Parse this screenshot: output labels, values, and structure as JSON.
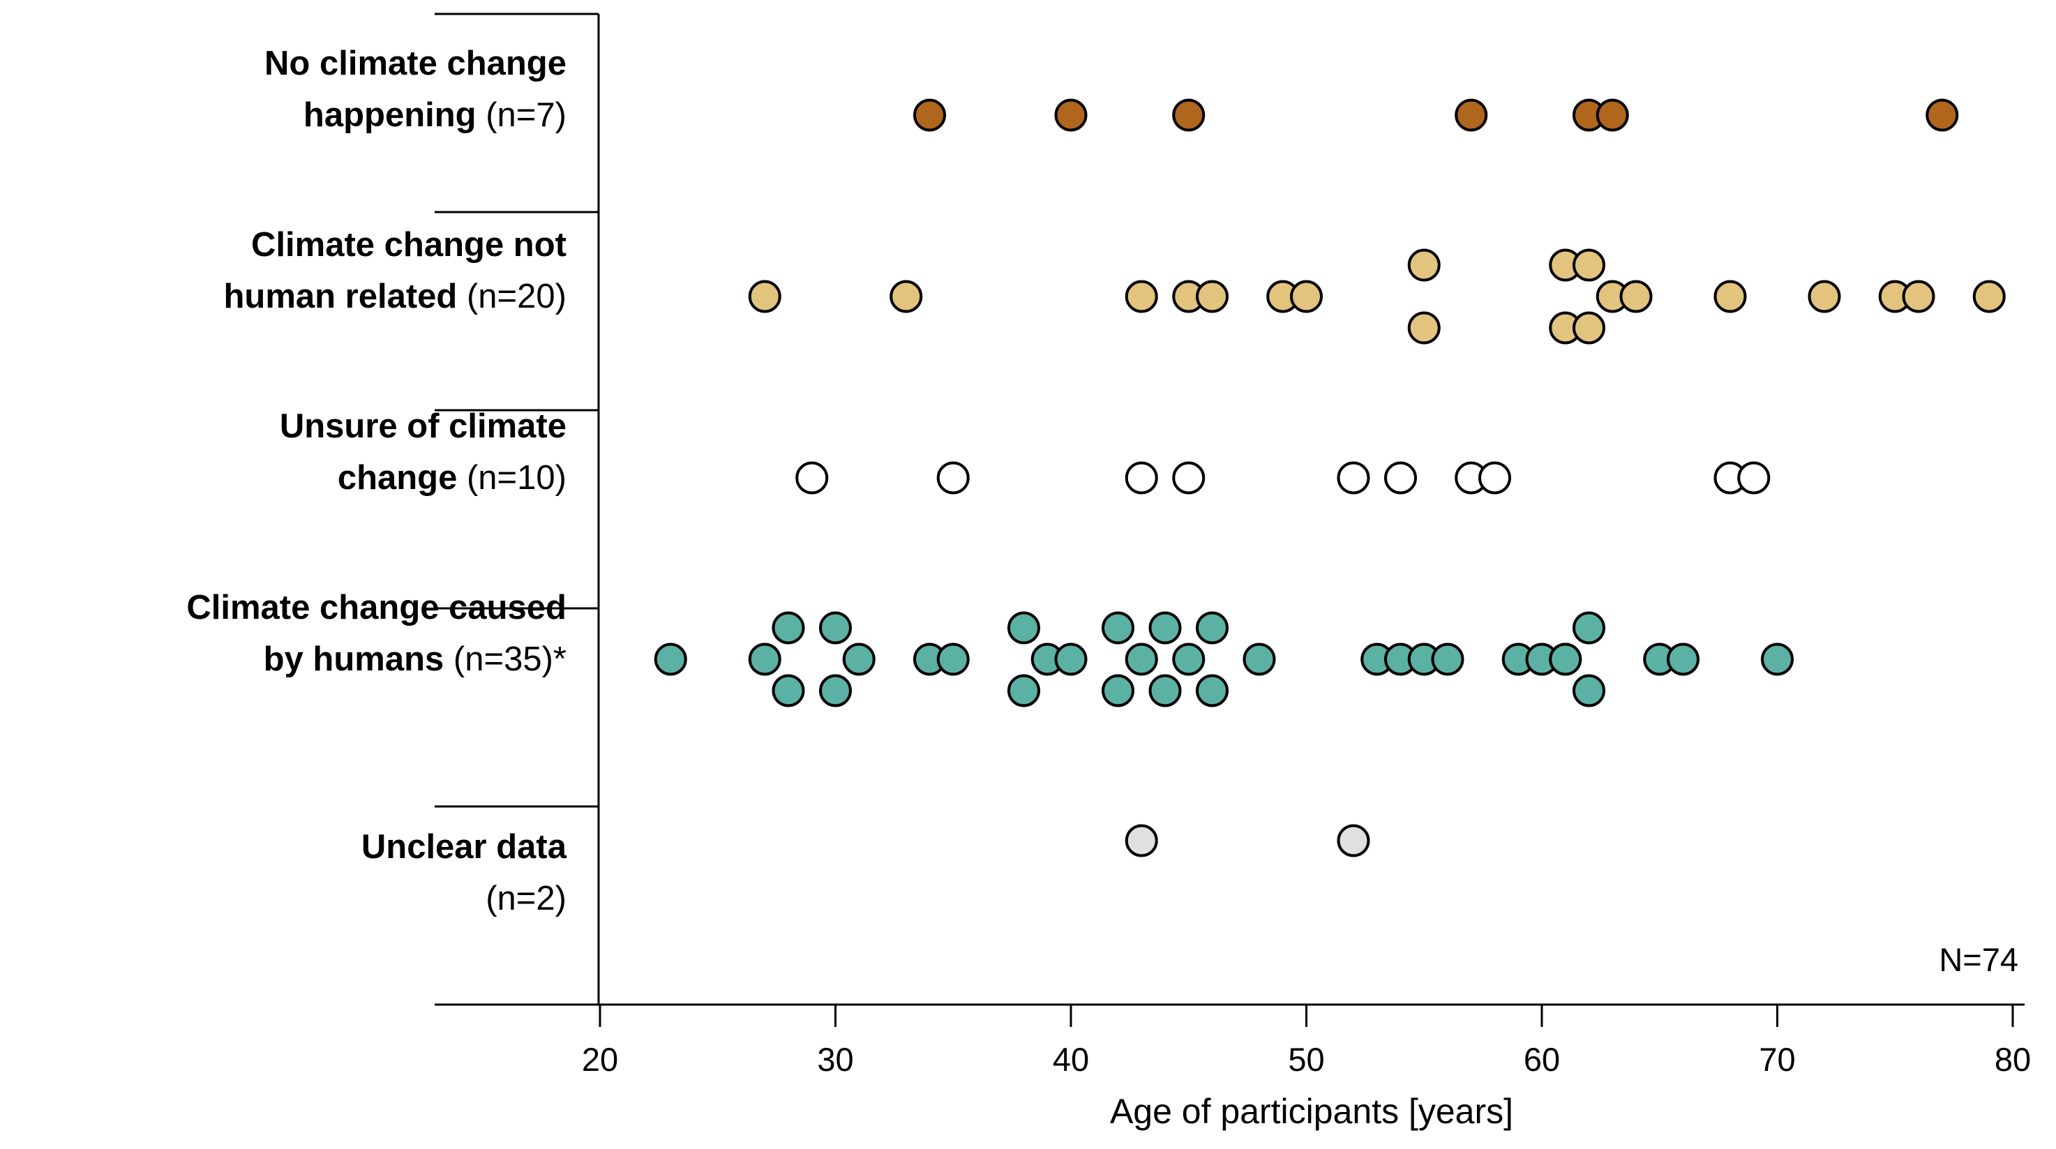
{
  "page": {
    "background": "#ffffff",
    "line_color": "#000000"
  },
  "chart_data": {
    "type": "scatter",
    "variant": "dot-strip-plot",
    "title": "",
    "xlabel": "Age of participants [years]",
    "ylabel": "",
    "x_range": [
      20,
      80
    ],
    "x_ticks": [
      20,
      30,
      40,
      50,
      60,
      70,
      80
    ],
    "grid": "off",
    "legend": "none",
    "total_label": "N=74",
    "dot_outline_color": "#000000",
    "categories": [
      {
        "full_label": "No climate change happening (n=7)",
        "line1": "No climate change",
        "line2_bold": "happening",
        "line2_rest": "(n=7)",
        "n": 7,
        "dot_color": "#b1661e",
        "points": [
          [
            34,
            0
          ],
          [
            40,
            0
          ],
          [
            45,
            0
          ],
          [
            57,
            0
          ],
          [
            62,
            0
          ],
          [
            63,
            0
          ],
          [
            77,
            0
          ]
        ]
      },
      {
        "full_label": "Climate change not human related (n=20)",
        "line1": "Climate change not",
        "line2_bold": "human related",
        "line2_rest": "(n=20)",
        "n": 20,
        "dot_color": "#e3c47f",
        "points": [
          [
            27,
            0
          ],
          [
            33,
            0
          ],
          [
            43,
            0
          ],
          [
            45,
            0
          ],
          [
            46,
            0
          ],
          [
            49,
            0
          ],
          [
            50,
            0
          ],
          [
            55,
            -1
          ],
          [
            55,
            1
          ],
          [
            61,
            -1
          ],
          [
            62,
            -1
          ],
          [
            61,
            1
          ],
          [
            62,
            1
          ],
          [
            63,
            0
          ],
          [
            64,
            0
          ],
          [
            68,
            0
          ],
          [
            72,
            0
          ],
          [
            75,
            0
          ],
          [
            76,
            0
          ],
          [
            79,
            0
          ]
        ]
      },
      {
        "full_label": "Unsure of climate change (n=10)",
        "line1": "Unsure of climate",
        "line2_bold": "change",
        "line2_rest": "(n=10)",
        "n": 10,
        "dot_color": "#ffffff",
        "points": [
          [
            29,
            0
          ],
          [
            35,
            0
          ],
          [
            43,
            0
          ],
          [
            45,
            0
          ],
          [
            52,
            0
          ],
          [
            54,
            0
          ],
          [
            57,
            0
          ],
          [
            58,
            0
          ],
          [
            68,
            0
          ],
          [
            69,
            0
          ]
        ]
      },
      {
        "full_label": "Climate change caused by humans (n=35)*",
        "line1": "Climate change caused",
        "line2_bold": "by humans",
        "line2_rest": "(n=35)*",
        "n": 35,
        "dot_color": "#5bb2a4",
        "points": [
          [
            23,
            0
          ],
          [
            27,
            0
          ],
          [
            28,
            -1
          ],
          [
            28,
            1
          ],
          [
            30,
            -1
          ],
          [
            30,
            1
          ],
          [
            31,
            0
          ],
          [
            34,
            0
          ],
          [
            35,
            0
          ],
          [
            38,
            -1
          ],
          [
            38,
            1
          ],
          [
            39,
            0
          ],
          [
            40,
            0
          ],
          [
            42,
            -1
          ],
          [
            42,
            1
          ],
          [
            43,
            0
          ],
          [
            44,
            -1
          ],
          [
            44,
            1
          ],
          [
            45,
            0
          ],
          [
            46,
            -1
          ],
          [
            46,
            1
          ],
          [
            48,
            0
          ],
          [
            53,
            0
          ],
          [
            54,
            0
          ],
          [
            55,
            0
          ],
          [
            56,
            0
          ],
          [
            59,
            0
          ],
          [
            60,
            0
          ],
          [
            61,
            0
          ],
          [
            61,
            0
          ],
          [
            62,
            -1
          ],
          [
            62,
            1
          ],
          [
            65,
            0
          ],
          [
            66,
            0
          ],
          [
            70,
            0
          ]
        ]
      },
      {
        "full_label": "Unclear data (n=2)",
        "line1": "Unclear data",
        "line2_bold": "",
        "line2_rest": "(n=2)",
        "n": 2,
        "dot_color": "#e0e0e0",
        "points": [
          [
            43,
            0
          ],
          [
            52,
            0
          ]
        ]
      }
    ]
  }
}
